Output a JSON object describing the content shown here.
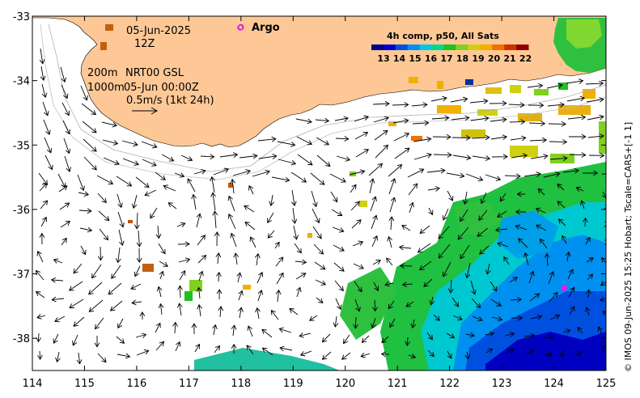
{
  "map": {
    "lon_ticks": [
      "114",
      "115",
      "116",
      "117",
      "118",
      "119",
      "120",
      "121",
      "122",
      "123",
      "124",
      "125"
    ],
    "lat_ticks": [
      "-33",
      "-34",
      "-35",
      "-36",
      "-37",
      "-38"
    ],
    "lon_range": [
      114,
      125
    ],
    "lat_range": [
      -38.5,
      -33
    ],
    "land_color": "#fdc896",
    "ocean_color": "#ffffff"
  },
  "info": {
    "date": "05-Jun-2025",
    "hour": "12Z",
    "depth_label": "200m",
    "depth_label2": "1000m",
    "product": "NRT00 GSL",
    "analysis_time": "05-Jun 00:00Z",
    "scale_label": "0.5m/s (1kt 24h)"
  },
  "argo": {
    "label": "Argo",
    "color": "#e020e0",
    "floats": [
      {
        "lon": 118.0,
        "lat": -33.17
      },
      {
        "lon": 124.2,
        "lat": -37.22
      }
    ]
  },
  "colorbar": {
    "title": "4h comp, p50, All Sats",
    "ticks": [
      "13",
      "14",
      "15",
      "16",
      "17",
      "18",
      "19",
      "20",
      "21",
      "22"
    ],
    "colors": [
      "#00008b",
      "#0000d0",
      "#0050e0",
      "#0090f0",
      "#00c8e0",
      "#00d890",
      "#20c020",
      "#80d020",
      "#d0d010",
      "#f0b000",
      "#f07000",
      "#d03000",
      "#900000"
    ]
  },
  "credit": "© IMOS 09-Jun-2025 15:25 Hobart; Tscale=CARS+[-1 1]"
}
